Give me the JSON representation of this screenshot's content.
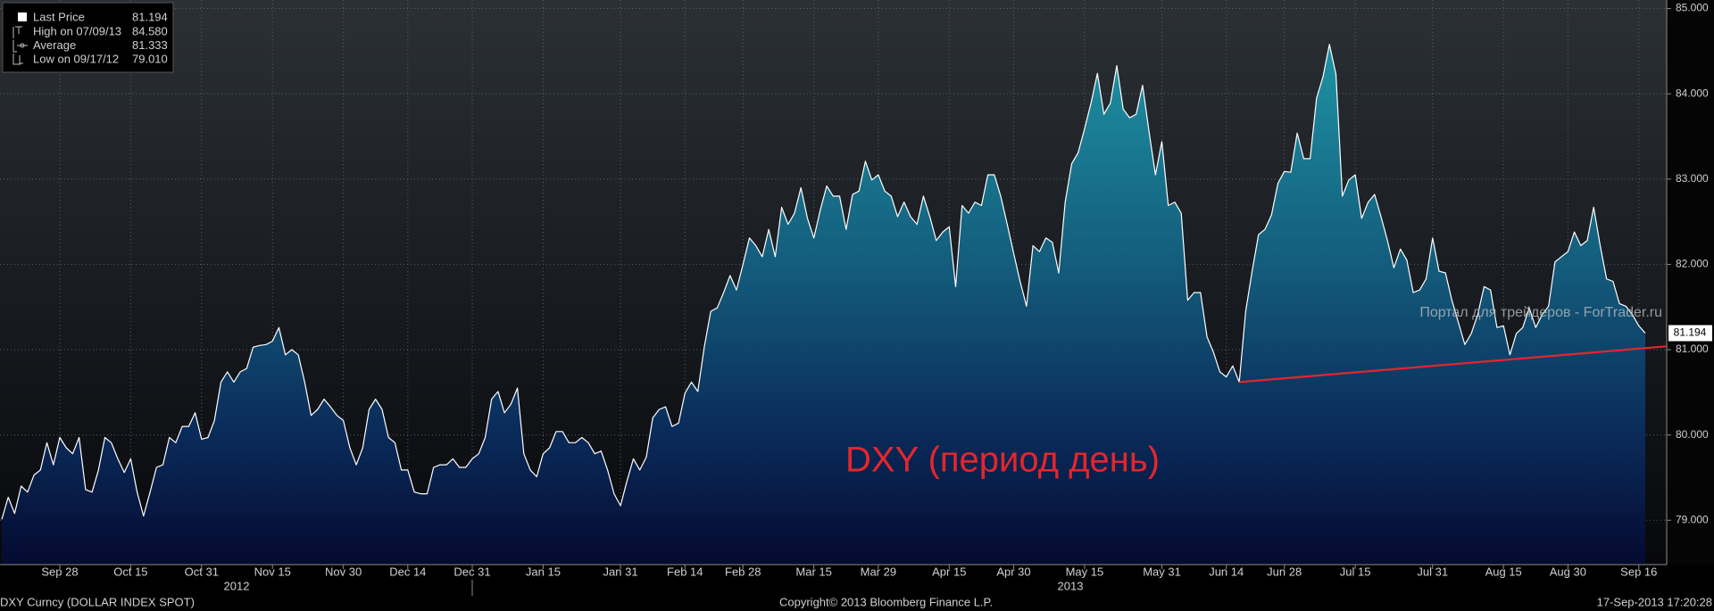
{
  "chart_data": {
    "type": "area",
    "series": [
      {
        "name": "Last Price",
        "color": "#ffffff",
        "values": [
          79.01,
          79.27,
          79.08,
          79.4,
          79.33,
          79.53,
          79.59,
          79.91,
          79.65,
          79.97,
          79.85,
          79.78,
          79.97,
          79.36,
          79.33,
          79.59,
          79.97,
          79.91,
          79.72,
          79.56,
          79.72,
          79.33,
          79.05,
          79.33,
          79.62,
          79.65,
          79.97,
          79.91,
          80.1,
          80.1,
          80.26,
          79.95,
          79.97,
          80.17,
          80.62,
          80.74,
          80.62,
          80.74,
          80.78,
          81.03,
          81.05,
          81.06,
          81.1,
          81.26,
          80.94,
          81.0,
          80.94,
          80.62,
          80.23,
          80.3,
          80.42,
          80.33,
          80.23,
          80.17,
          79.85,
          79.65,
          79.85,
          80.3,
          80.42,
          80.3,
          79.97,
          79.91,
          79.59,
          79.59,
          79.33,
          79.31,
          79.31,
          79.62,
          79.65,
          79.65,
          79.72,
          79.62,
          79.62,
          79.72,
          79.78,
          79.97,
          80.42,
          80.51,
          80.26,
          80.36,
          80.55,
          79.78,
          79.59,
          79.51,
          79.78,
          79.85,
          80.04,
          80.04,
          79.91,
          79.91,
          79.97,
          79.91,
          79.78,
          79.81,
          79.59,
          79.31,
          79.17,
          79.46,
          79.72,
          79.59,
          79.74,
          80.2,
          80.3,
          80.33,
          80.1,
          80.14,
          80.49,
          80.62,
          80.51,
          81.03,
          81.45,
          81.49,
          81.67,
          81.87,
          81.7,
          82.0,
          82.31,
          82.22,
          82.09,
          82.41,
          82.09,
          82.67,
          82.47,
          82.6,
          82.9,
          82.54,
          82.31,
          82.64,
          82.92,
          82.8,
          82.8,
          82.41,
          82.82,
          82.86,
          83.21,
          82.99,
          83.05,
          82.86,
          82.8,
          82.56,
          82.73,
          82.56,
          82.47,
          82.8,
          82.56,
          82.28,
          82.38,
          82.44,
          81.74,
          82.69,
          82.6,
          82.73,
          82.69,
          83.05,
          83.05,
          82.8,
          82.47,
          82.13,
          81.8,
          81.51,
          82.22,
          82.15,
          82.31,
          82.26,
          81.9,
          82.73,
          83.18,
          83.31,
          83.59,
          83.89,
          84.24,
          83.76,
          83.89,
          84.33,
          83.82,
          83.72,
          83.76,
          84.1,
          83.56,
          83.05,
          83.44,
          82.69,
          82.73,
          82.6,
          81.58,
          81.67,
          81.67,
          81.15,
          80.97,
          80.74,
          80.68,
          80.81,
          80.62,
          81.45,
          81.92,
          82.35,
          82.41,
          82.58,
          82.95,
          83.09,
          83.08,
          83.54,
          83.24,
          83.24,
          83.95,
          84.2,
          84.58,
          84.23,
          82.8,
          82.99,
          83.05,
          82.54,
          82.73,
          82.82,
          82.56,
          82.28,
          81.96,
          82.18,
          82.05,
          81.67,
          81.7,
          81.83,
          82.31,
          81.92,
          81.9,
          81.58,
          81.32,
          81.06,
          81.19,
          81.41,
          81.74,
          81.7,
          81.26,
          81.28,
          80.94,
          81.19,
          81.26,
          81.49,
          81.26,
          81.41,
          81.51,
          82.03,
          82.09,
          82.15,
          82.38,
          82.22,
          82.28,
          82.67,
          82.22,
          81.83,
          81.8,
          81.54,
          81.51,
          81.41,
          81.28,
          81.194
        ]
      }
    ],
    "categories": [
      null,
      null,
      null,
      null,
      null,
      null,
      null,
      null,
      null,
      "Sep 28",
      null,
      null,
      null,
      null,
      null,
      null,
      null,
      null,
      null,
      null,
      "Oct 15",
      null,
      null,
      null,
      null,
      null,
      null,
      null,
      null,
      null,
      null,
      "Oct 31",
      null,
      null,
      null,
      null,
      null,
      null,
      null,
      null,
      null,
      null,
      "Nov 15",
      null,
      null,
      null,
      null,
      null,
      null,
      null,
      null,
      null,
      null,
      "Nov 30",
      null,
      null,
      null,
      null,
      null,
      null,
      null,
      null,
      null,
      "Dec 14",
      null,
      null,
      null,
      null,
      null,
      null,
      null,
      null,
      null,
      "Dec 31",
      null,
      null,
      null,
      null,
      null,
      null,
      null,
      null,
      null,
      null,
      "Jan 15",
      null,
      null,
      null,
      null,
      null,
      null,
      null,
      null,
      null,
      null,
      null,
      "Jan 31",
      null,
      null,
      null,
      null,
      null,
      null,
      null,
      null,
      null,
      "Feb 14",
      null,
      null,
      null,
      null,
      null,
      null,
      null,
      null,
      "Feb 28",
      null,
      null,
      null,
      null,
      null,
      null,
      null,
      null,
      null,
      null,
      "Mar 15",
      null,
      null,
      null,
      null,
      null,
      null,
      null,
      null,
      null,
      "Mar 29",
      null,
      null,
      null,
      null,
      null,
      null,
      null,
      null,
      null,
      null,
      "Apr 15",
      null,
      null,
      null,
      null,
      null,
      null,
      null,
      null,
      null,
      "Apr 30",
      null,
      null,
      null,
      null,
      null,
      null,
      null,
      null,
      null,
      null,
      "May 15",
      null,
      null,
      null,
      null,
      null,
      null,
      null,
      null,
      null,
      null,
      null,
      "May 31",
      null,
      null,
      null,
      null,
      null,
      null,
      null,
      null,
      null,
      "Jun 14",
      null,
      null,
      null,
      null,
      null,
      null,
      null,
      null,
      "Jun 28",
      null,
      null,
      null,
      null,
      null,
      null,
      null,
      null,
      null,
      null,
      "Jul 15",
      null,
      null,
      null,
      null,
      null,
      null,
      null,
      null,
      null,
      null,
      null,
      "Jul 31",
      null,
      null,
      null,
      null,
      null,
      null,
      null,
      null,
      null,
      null,
      "Aug 15",
      null,
      null,
      null,
      null,
      null,
      null,
      null,
      null,
      null,
      "Aug 30",
      null,
      null,
      null,
      null,
      null,
      null,
      null,
      null,
      null,
      null,
      "Sep 16",
      null
    ],
    "x_groups": [
      "2012",
      "2013"
    ],
    "ylim": [
      78.48,
      85.1
    ],
    "yticks": [
      {
        "value": 79,
        "label": "79.000"
      },
      {
        "value": 80,
        "label": "80.000"
      },
      {
        "value": 81,
        "label": "81.000"
      },
      {
        "value": 82,
        "label": "82.000"
      },
      {
        "value": 83,
        "label": "83.000"
      },
      {
        "value": 84,
        "label": "84.000"
      },
      {
        "value": 85,
        "label": "85.000"
      }
    ],
    "grid": true,
    "legend_stats": [
      {
        "name": "High on 07/09/13",
        "value": {
          "value": 84.58,
          "label": "84.580"
        }
      },
      {
        "name": "Average",
        "value": 81.333
      },
      {
        "name": "Low on 09/17/12",
        "value": {
          "value": 79.01,
          "label": "79.010"
        }
      }
    ],
    "trendline": {
      "color": "#e3262d",
      "x": [
        192,
        258.4
      ],
      "values": [
        80.62,
        81.04
      ]
    },
    "annotation": "DXY (период день)",
    "watermark": "Портал для трейдеров - ForTrader.ru",
    "footer": {
      "left": "DXY Curncy (DOLLAR INDEX SPOT)",
      "center": "Copyright© 2013 Bloomberg Finance L.P.",
      "right": "17-Sep-2013 17:20:28"
    }
  }
}
